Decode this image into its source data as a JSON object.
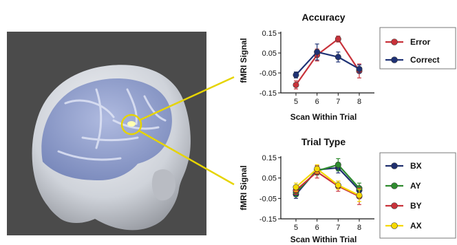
{
  "chart_data": [
    {
      "type": "line",
      "title": "Accuracy",
      "xlabel": "Scan Within Trial",
      "ylabel": "fMRI Signal",
      "categories": [
        "5",
        "6",
        "7",
        "8"
      ],
      "ylim": [
        -0.15,
        0.15
      ],
      "yticks": [
        "0.15",
        "0.05",
        "-0.05",
        "-0.15"
      ],
      "legend_position": "right",
      "series": [
        {
          "name": "Error",
          "color": "#c8323a",
          "values": [
            -0.11,
            0.04,
            0.12,
            -0.04
          ],
          "errors": [
            0.02,
            0.03,
            0.015,
            0.035
          ]
        },
        {
          "name": "Correct",
          "color": "#1f3275",
          "values": [
            -0.06,
            0.055,
            0.03,
            -0.03
          ],
          "errors": [
            0.015,
            0.04,
            0.025,
            0.02
          ]
        }
      ]
    },
    {
      "type": "line",
      "title": "Trial Type",
      "xlabel": "Scan Within Trial",
      "ylabel": "fMRI Signal",
      "categories": [
        "5",
        "6",
        "7",
        "8"
      ],
      "ylim": [
        -0.15,
        0.15
      ],
      "yticks": [
        "0.15",
        "0.05",
        "-0.05",
        "-0.15"
      ],
      "legend_position": "right",
      "series": [
        {
          "name": "BX",
          "color": "#1f2f6e",
          "values": [
            -0.03,
            0.09,
            0.1,
            -0.01
          ],
          "errors": [
            0.02,
            0.02,
            0.025,
            0.02
          ]
        },
        {
          "name": "AY",
          "color": "#2e8b2e",
          "values": [
            -0.02,
            0.085,
            0.115,
            0.0
          ],
          "errors": [
            0.02,
            0.02,
            0.03,
            0.025
          ]
        },
        {
          "name": "BY",
          "color": "#c8323a",
          "values": [
            -0.01,
            0.08,
            0.01,
            -0.04
          ],
          "errors": [
            0.02,
            0.03,
            0.025,
            0.04
          ]
        },
        {
          "name": "AX",
          "color": "#f5d800",
          "values": [
            0.005,
            0.095,
            0.015,
            -0.035
          ],
          "errors": [
            0.02,
            0.02,
            0.02,
            0.03
          ]
        }
      ]
    }
  ],
  "callout_color": "#e6d400",
  "brain_image": {
    "background": "#4a4a4a",
    "head_color": "#d7dadf",
    "cortex_color": "#8d9fd0",
    "highlight": "#ffffb0"
  }
}
